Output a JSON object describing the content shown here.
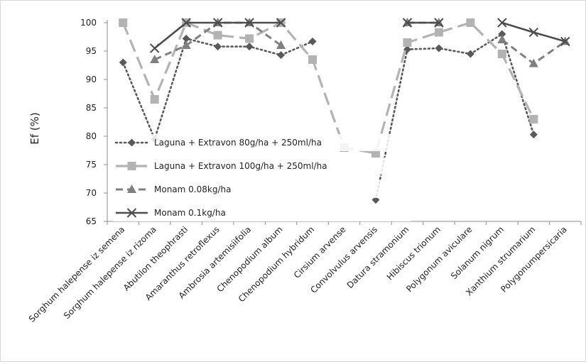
{
  "chart_data": {
    "type": "line",
    "ylabel": "Ef (%)",
    "xlabel": "",
    "ylim": [
      65,
      100
    ],
    "yticks": [
      65,
      70,
      75,
      80,
      85,
      90,
      95,
      100
    ],
    "grid": false,
    "legend_position": "left-center",
    "categories": [
      "Sorghum halepense iz semena",
      "Sorghum halepense iz rizoma",
      "Abutilon theophrasti",
      "Amaranthus retroflexus",
      "Ambrosia artemisiifolia",
      "Chenopodium album",
      "Chenopodium hybridum",
      "Cirsium arvense",
      "Convolvulus arvensis",
      "Datura stramonium",
      "Hibiscus trionum",
      "Polygonum aviculare",
      "Solanum nigrum",
      "Xanthium strumarium",
      "Polygonumpersicaria"
    ],
    "series": [
      {
        "name": "Laguna + Extravon 80g/ha + 250ml/ha",
        "color": "#595959",
        "dash": "dotted",
        "marker": "diamond",
        "values": [
          93,
          79.5,
          97.2,
          95.8,
          95.8,
          94.3,
          96.7,
          null,
          68.8,
          95.3,
          95.5,
          94.5,
          98,
          80.3,
          null
        ]
      },
      {
        "name": "Laguna + Extravon 100g/ha + 250ml/ha",
        "color": "#b3b3b3",
        "dash": "long-dash",
        "marker": "square",
        "values": [
          100,
          86.5,
          100,
          97.8,
          97.2,
          100,
          93.5,
          78,
          77,
          96.5,
          98.3,
          100,
          94.5,
          83,
          null
        ]
      },
      {
        "name": "Monam 0.08kg/ha",
        "color": "#808080",
        "dash": "dashed",
        "marker": "triangle",
        "values": [
          null,
          93.5,
          96,
          100,
          100,
          96,
          null,
          null,
          null,
          100,
          100,
          null,
          97,
          92.8,
          96.7
        ]
      },
      {
        "name": "Monam 0.1kg/ha",
        "color": "#4d4d4d",
        "dash": "solid",
        "marker": "x",
        "values": [
          null,
          95.5,
          100,
          100,
          100,
          100,
          null,
          null,
          null,
          100,
          100,
          null,
          100,
          98.3,
          96.7
        ]
      }
    ]
  }
}
